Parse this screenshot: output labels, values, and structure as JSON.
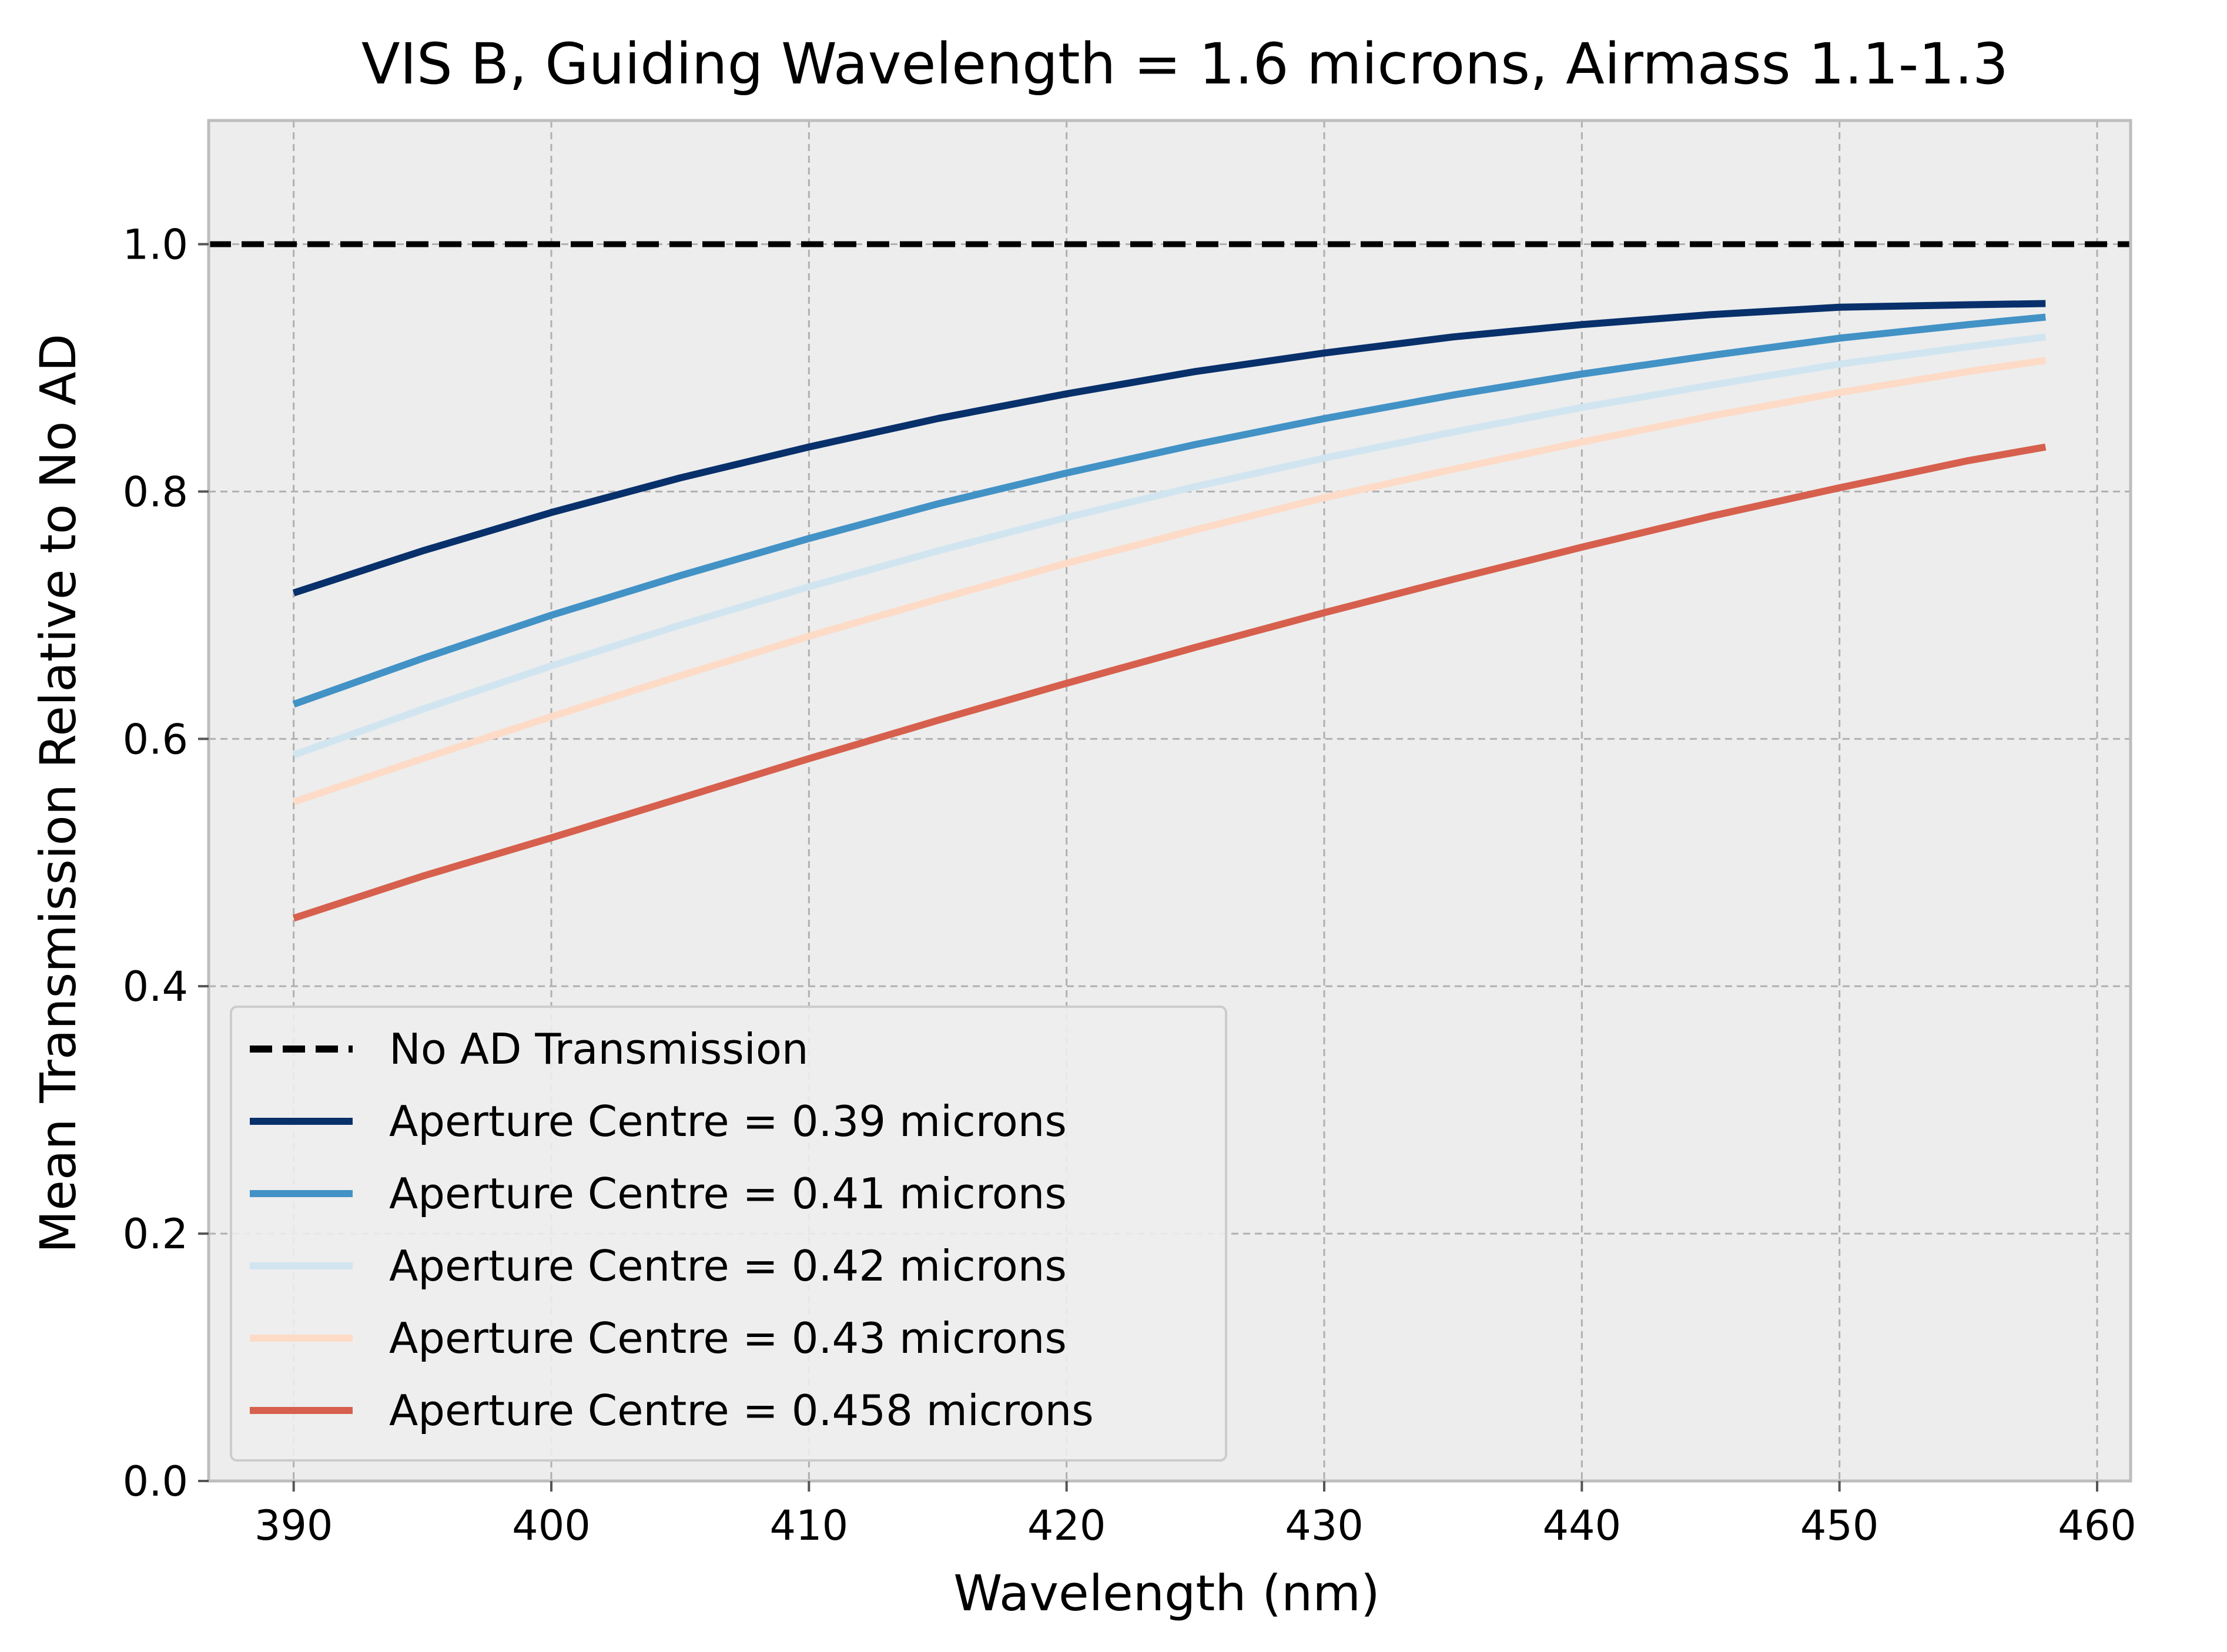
{
  "chart_data": {
    "type": "line",
    "title": "VIS B, Guiding Wavelength = 1.6 microns, Airmass 1.1-1.3",
    "xlabel": "Wavelength (nm)",
    "ylabel": "Mean Transmission Relative to No AD",
    "xlim": [
      386.7,
      461.3
    ],
    "ylim": [
      0.0,
      1.1
    ],
    "xticks": [
      390,
      400,
      410,
      420,
      430,
      440,
      450,
      460
    ],
    "yticks": [
      0.0,
      0.2,
      0.4,
      0.6,
      0.8,
      1.0
    ],
    "xtick_labels": [
      "390",
      "400",
      "410",
      "420",
      "430",
      "440",
      "450",
      "460"
    ],
    "ytick_labels": [
      "0.0",
      "0.2",
      "0.4",
      "0.6",
      "0.8",
      "1.0"
    ],
    "grid": true,
    "legend_position": "bottom-left",
    "reference_line": {
      "name": "No AD Transmission",
      "y": 1.0,
      "style": "dashed",
      "color": "#000000"
    },
    "x": [
      390,
      395,
      400,
      405,
      410,
      415,
      420,
      425,
      430,
      435,
      440,
      445,
      450,
      455,
      458
    ],
    "series": [
      {
        "name": "Aperture Centre = 0.39 microns",
        "color": "#08306b",
        "values": [
          0.718,
          0.752,
          0.783,
          0.811,
          0.836,
          0.859,
          0.879,
          0.897,
          0.912,
          0.925,
          0.935,
          0.943,
          0.949,
          0.951,
          0.952
        ]
      },
      {
        "name": "Aperture Centre = 0.41 microns",
        "color": "#4292c6",
        "values": [
          0.628,
          0.665,
          0.7,
          0.732,
          0.762,
          0.79,
          0.815,
          0.838,
          0.859,
          0.878,
          0.895,
          0.91,
          0.924,
          0.935,
          0.941
        ]
      },
      {
        "name": "Aperture Centre = 0.42 microns",
        "color": "#d1e5f0",
        "values": [
          0.587,
          0.624,
          0.659,
          0.692,
          0.723,
          0.752,
          0.779,
          0.804,
          0.827,
          0.848,
          0.868,
          0.886,
          0.903,
          0.917,
          0.925
        ]
      },
      {
        "name": "Aperture Centre = 0.43 microns",
        "color": "#fddbc7",
        "values": [
          0.549,
          0.584,
          0.618,
          0.651,
          0.683,
          0.713,
          0.742,
          0.769,
          0.795,
          0.818,
          0.84,
          0.861,
          0.88,
          0.897,
          0.906
        ]
      },
      {
        "name": "Aperture Centre = 0.458 microns",
        "color": "#d6604d",
        "values": [
          0.455,
          0.489,
          0.52,
          0.552,
          0.584,
          0.615,
          0.645,
          0.674,
          0.702,
          0.729,
          0.755,
          0.78,
          0.803,
          0.825,
          0.836
        ]
      }
    ]
  }
}
